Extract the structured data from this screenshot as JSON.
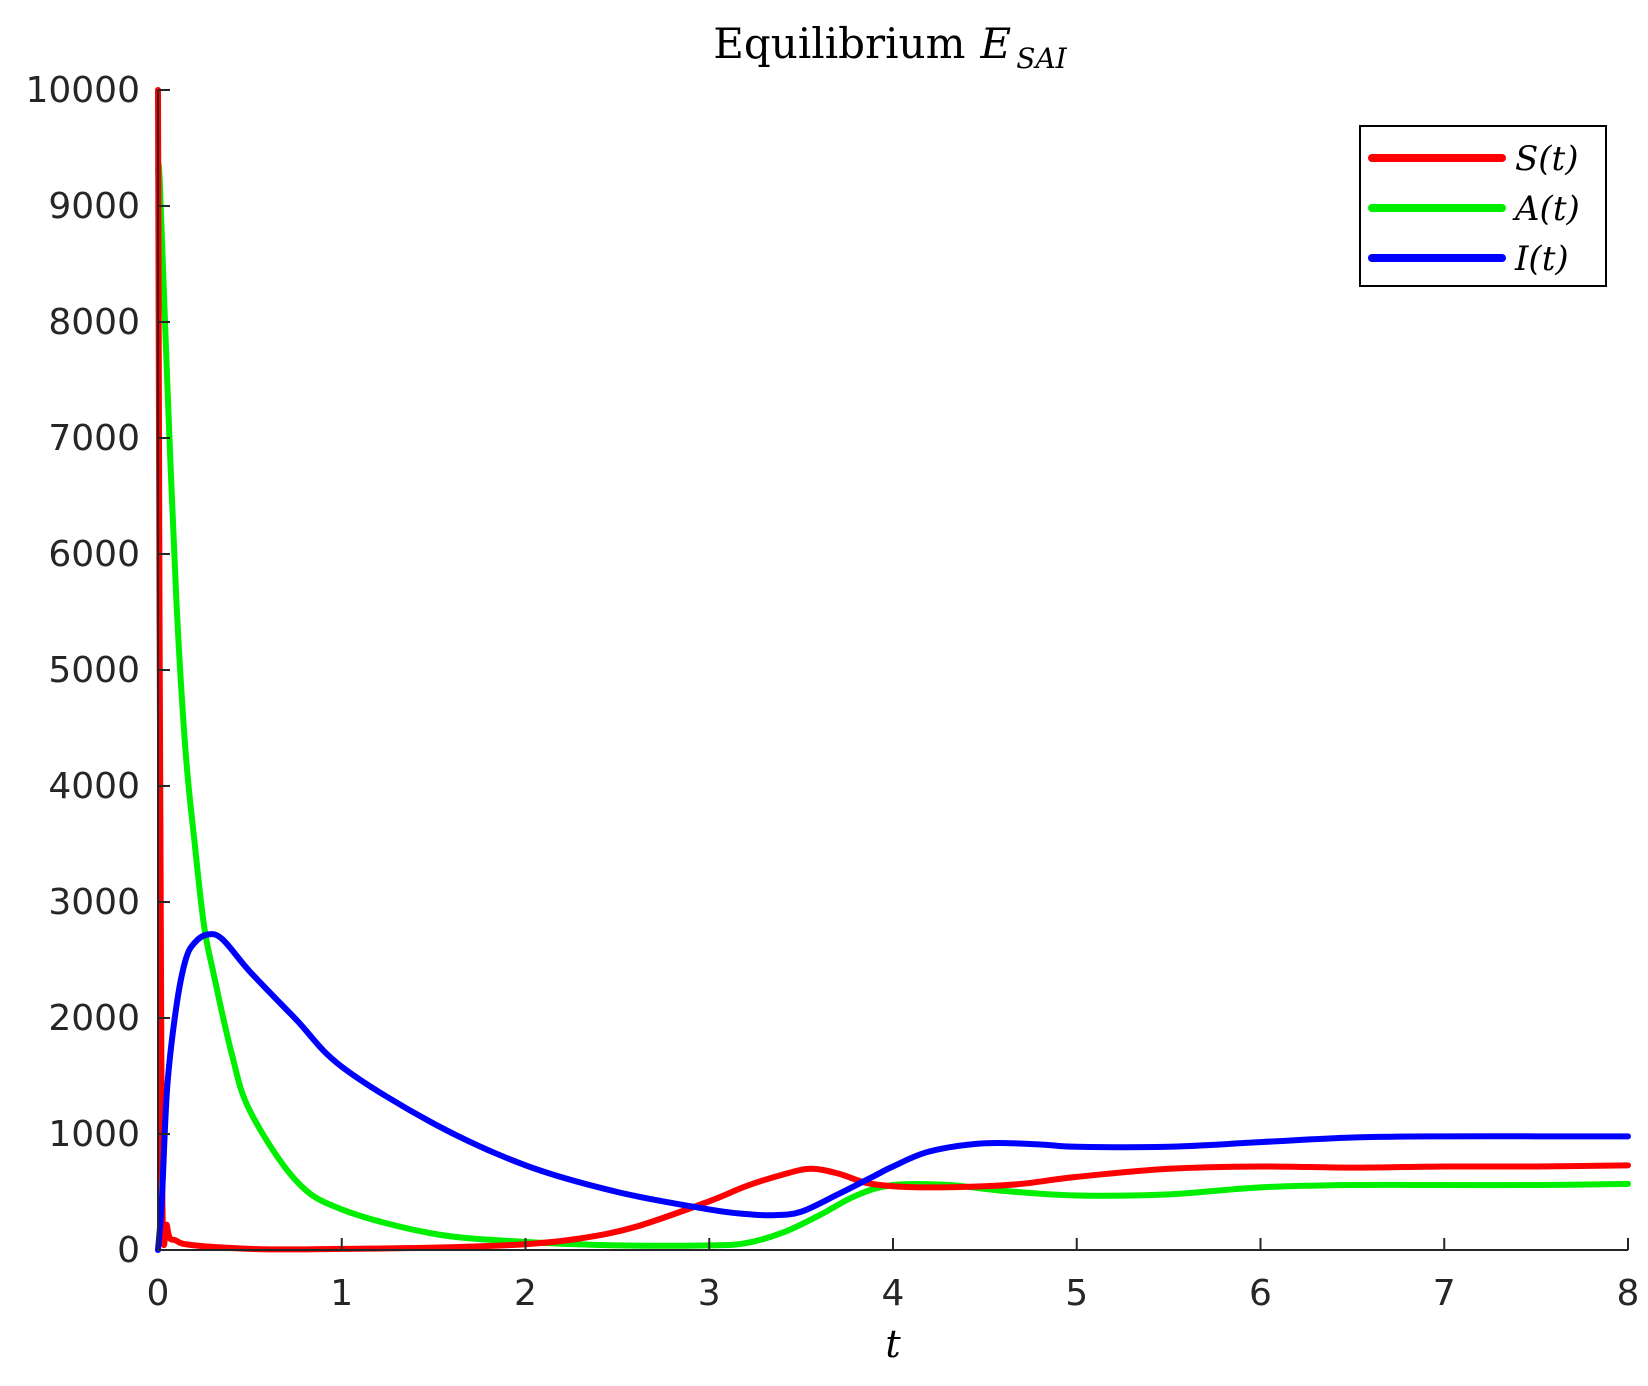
{
  "chart_data": {
    "type": "line",
    "title": {
      "prefix": "Equilibrium",
      "math_base": "E",
      "math_sub": "SAI"
    },
    "xlabel": "t",
    "ylabel": "",
    "xlim": [
      0,
      8
    ],
    "ylim": [
      0,
      10000
    ],
    "xticks": [
      "0",
      "1",
      "2",
      "3",
      "4",
      "5",
      "6",
      "7",
      "8"
    ],
    "yticks": [
      "0",
      "1000",
      "2000",
      "3000",
      "4000",
      "5000",
      "6000",
      "7000",
      "8000",
      "9000",
      "10000"
    ],
    "grid": false,
    "legend": {
      "position": "top-right",
      "entries": [
        "S(t)",
        "A(t)",
        "I(t)"
      ]
    },
    "series": [
      {
        "name": "S(t)",
        "color": "#ff0000",
        "x": [
          0,
          0.02,
          0.05,
          0.1,
          0.2,
          0.5,
          0.75,
          1,
          1.5,
          2,
          2.3,
          2.6,
          3,
          3.2,
          3.4,
          3.55,
          3.7,
          3.85,
          4,
          4.2,
          4.5,
          4.7,
          5,
          5.5,
          6,
          6.5,
          7,
          7.5,
          8
        ],
        "y": [
          10000,
          1000,
          200,
          80,
          40,
          10,
          5,
          10,
          20,
          50,
          100,
          200,
          420,
          550,
          650,
          700,
          660,
          580,
          550,
          540,
          550,
          570,
          630,
          700,
          720,
          710,
          720,
          720,
          730
        ]
      },
      {
        "name": "A(t)",
        "color": "#00ee00",
        "x": [
          0,
          0.01,
          0.05,
          0.1,
          0.15,
          0.2,
          0.25,
          0.3,
          0.4,
          0.5,
          0.75,
          1,
          1.5,
          2,
          2.5,
          3,
          3.2,
          3.4,
          3.6,
          3.8,
          4,
          4.3,
          4.6,
          5,
          5.5,
          6,
          6.5,
          7,
          7.5,
          8
        ],
        "y": [
          9300,
          9200,
          7500,
          5600,
          4300,
          3500,
          2800,
          2400,
          1700,
          1200,
          600,
          350,
          140,
          70,
          40,
          40,
          60,
          150,
          300,
          470,
          560,
          560,
          510,
          470,
          480,
          540,
          560,
          560,
          560,
          570
        ]
      },
      {
        "name": "I(t)",
        "color": "#0000ff",
        "x": [
          0,
          0.02,
          0.05,
          0.1,
          0.15,
          0.2,
          0.27,
          0.35,
          0.5,
          0.75,
          1,
          1.5,
          2,
          2.5,
          3,
          3.2,
          3.35,
          3.5,
          3.7,
          3.9,
          4,
          4.2,
          4.5,
          4.8,
          5,
          5.5,
          6,
          6.5,
          7,
          7.5,
          8
        ],
        "y": [
          0,
          400,
          1400,
          2100,
          2500,
          2650,
          2720,
          2680,
          2400,
          1990,
          1580,
          1090,
          730,
          500,
          350,
          310,
          300,
          330,
          480,
          640,
          720,
          850,
          920,
          910,
          890,
          890,
          930,
          970,
          980,
          980,
          980
        ]
      }
    ]
  }
}
